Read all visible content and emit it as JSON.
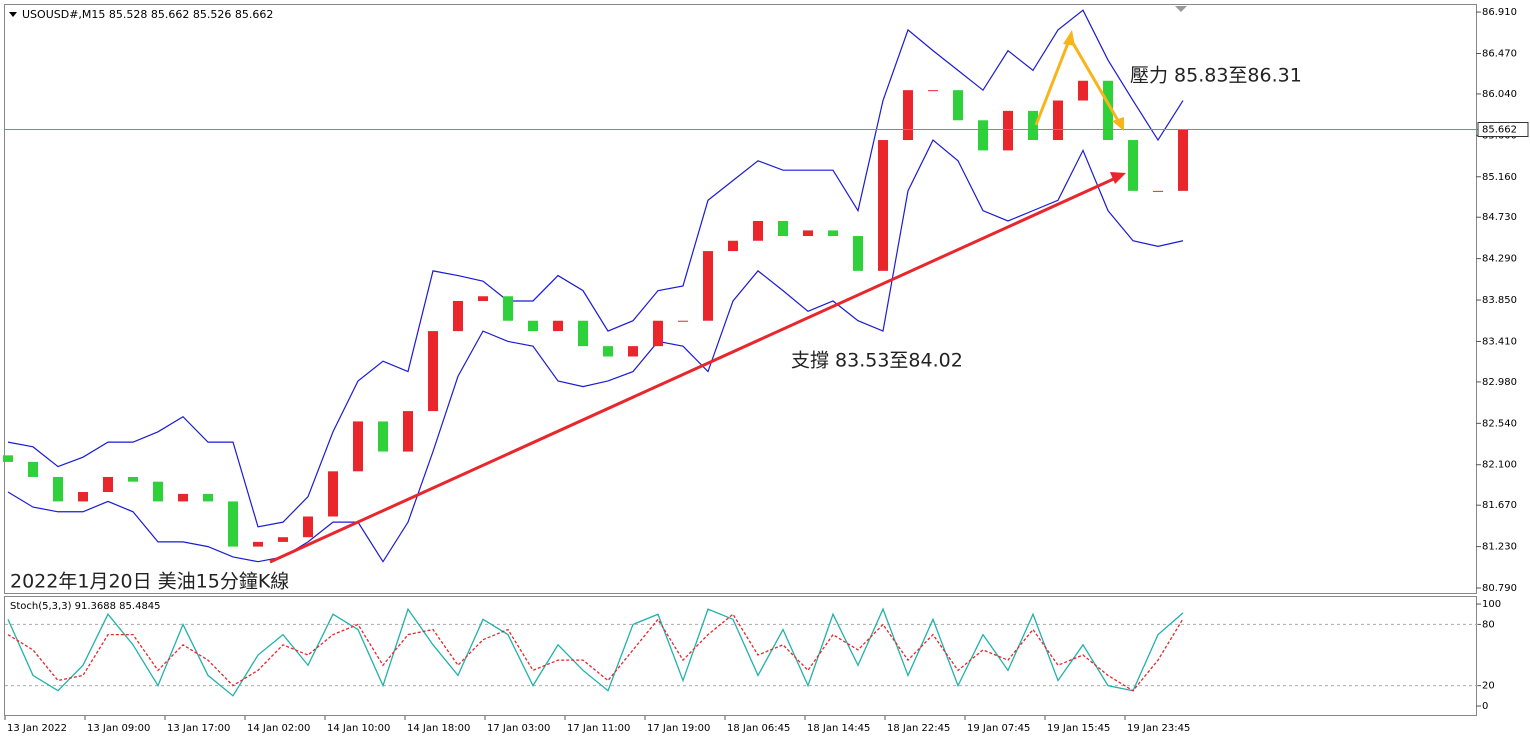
{
  "chart_data": [
    {
      "type": "candlestick",
      "title": "USOUSD#,M15  85.528 85.662 85.526 85.662",
      "annotations": [
        "壓力 85.83至86.31",
        "支撐 83.53至84.02",
        "2022年1月20日 美油15分鐘K線"
      ],
      "x_labels": [
        "13 Jan 2022",
        "13 Jan 09:00",
        "13 Jan 17:00",
        "14 Jan 02:00",
        "14 Jan 10:00",
        "14 Jan 18:00",
        "17 Jan 03:00",
        "17 Jan 11:00",
        "17 Jan 19:00",
        "18 Jan 06:45",
        "18 Jan 14:45",
        "18 Jan 22:45",
        "19 Jan 07:45",
        "19 Jan 15:45",
        "19 Jan 23:45"
      ],
      "open": [
        82.2,
        82.13,
        81.97,
        81.71,
        81.81,
        81.97,
        81.92,
        81.71,
        81.79,
        81.71,
        81.23,
        81.28,
        81.33,
        81.55,
        82.03,
        82.56,
        82.24,
        82.67,
        83.52,
        83.84,
        83.89,
        83.63,
        83.52,
        83.63,
        83.36,
        83.25,
        83.36,
        83.63,
        83.63,
        84.37,
        84.48,
        84.69,
        84.53,
        84.59,
        84.53,
        84.16,
        85.55,
        86.08,
        86.08,
        85.76,
        85.44,
        85.86,
        85.55,
        85.97,
        86.18,
        85.55,
        85.01,
        85.01
      ],
      "close": [
        82.13,
        81.97,
        81.71,
        81.81,
        81.97,
        81.92,
        81.71,
        81.79,
        81.71,
        81.23,
        81.28,
        81.33,
        81.55,
        82.03,
        82.56,
        82.24,
        82.67,
        83.52,
        83.84,
        83.89,
        83.63,
        83.52,
        83.63,
        83.36,
        83.25,
        83.36,
        83.63,
        83.63,
        84.37,
        84.48,
        84.69,
        84.53,
        84.59,
        84.53,
        84.16,
        85.55,
        86.08,
        86.08,
        85.76,
        85.44,
        85.86,
        85.55,
        85.97,
        86.18,
        85.55,
        85.01,
        85.01,
        85.662
      ],
      "upper_band": [
        82.34,
        82.29,
        82.08,
        82.18,
        82.34,
        82.34,
        82.45,
        82.61,
        82.34,
        82.34,
        81.44,
        81.49,
        81.76,
        82.45,
        82.99,
        83.2,
        83.09,
        84.16,
        84.11,
        84.05,
        83.84,
        83.84,
        84.11,
        83.95,
        83.52,
        83.63,
        83.95,
        84.0,
        84.91,
        85.12,
        85.33,
        85.23,
        85.23,
        85.23,
        84.8,
        85.97,
        86.72,
        86.5,
        86.29,
        86.08,
        86.5,
        86.29,
        86.72,
        86.93,
        86.4,
        85.97,
        85.55,
        85.97
      ],
      "lower_band": [
        81.81,
        81.65,
        81.6,
        81.6,
        81.71,
        81.6,
        81.28,
        81.28,
        81.23,
        81.12,
        81.07,
        81.12,
        81.28,
        81.49,
        81.49,
        81.07,
        81.49,
        82.24,
        83.04,
        83.52,
        83.41,
        83.36,
        82.99,
        82.93,
        82.99,
        83.09,
        83.41,
        83.36,
        83.09,
        83.84,
        84.16,
        83.95,
        83.73,
        83.84,
        83.63,
        83.52,
        85.01,
        85.55,
        85.33,
        84.8,
        84.69,
        84.8,
        84.91,
        85.44,
        84.8,
        84.48,
        84.42,
        84.48
      ],
      "up_color": "#e8262b",
      "down_color": "#2fd13a",
      "band_color": "#1b1bd6",
      "current_price": 85.662,
      "ylim": [
        80.737,
        86.985
      ],
      "yticks": [
        {
          "value": 86.91,
          "label": "86.910"
        },
        {
          "value": 86.47,
          "label": "86.470"
        },
        {
          "value": 86.04,
          "label": "86.040"
        },
        {
          "value": 85.6,
          "label": "85.600"
        },
        {
          "value": 85.16,
          "label": "85.160"
        },
        {
          "value": 84.73,
          "label": "84.730"
        },
        {
          "value": 84.29,
          "label": "84.290"
        },
        {
          "value": 83.85,
          "label": "83.850"
        },
        {
          "value": 83.41,
          "label": "83.410"
        },
        {
          "value": 82.98,
          "label": "82.980"
        },
        {
          "value": 82.54,
          "label": "82.540"
        },
        {
          "value": 82.1,
          "label": "82.100"
        },
        {
          "value": 81.67,
          "label": "81.670"
        },
        {
          "value": 81.23,
          "label": "81.230"
        },
        {
          "value": 80.79,
          "label": "80.790"
        }
      ]
    },
    {
      "type": "line",
      "title": "Stoch(5,3,3) 91.3688 85.4845",
      "series": [
        {
          "color": "#20b2aa",
          "values": [
            85,
            30,
            15,
            40,
            90,
            60,
            20,
            80,
            30,
            10,
            50,
            70,
            40,
            90,
            75,
            20,
            95,
            60,
            30,
            85,
            70,
            20,
            60,
            35,
            15,
            80,
            90,
            25,
            95,
            85,
            30,
            75,
            20,
            90,
            40,
            95,
            30,
            85,
            20,
            70,
            35,
            90,
            25,
            60,
            20,
            15,
            70,
            91.3688
          ]
        },
        {
          "color": "#e8262b",
          "values": [
            70,
            55,
            25,
            30,
            70,
            70,
            35,
            60,
            45,
            20,
            35,
            60,
            50,
            70,
            80,
            40,
            70,
            75,
            40,
            65,
            75,
            35,
            45,
            45,
            25,
            55,
            85,
            45,
            70,
            90,
            50,
            60,
            35,
            70,
            55,
            80,
            45,
            70,
            35,
            55,
            45,
            75,
            40,
            50,
            30,
            15,
            45,
            85.4845
          ]
        }
      ],
      "levels": [
        20,
        80
      ],
      "ylim": [
        -8.8,
        106.9
      ],
      "yticks": [
        100,
        80,
        20,
        0
      ]
    }
  ]
}
